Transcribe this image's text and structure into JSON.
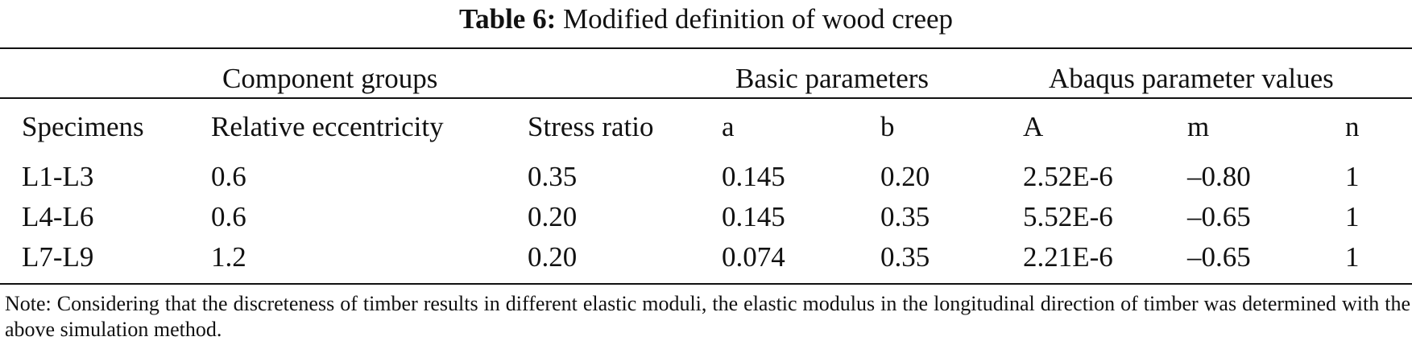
{
  "caption": {
    "label": "Table 6:",
    "title": "Modified definition of wood creep"
  },
  "group_headers": {
    "component_groups": "Component groups",
    "basic_parameters": "Basic parameters",
    "abaqus_parameter_values": "Abaqus parameter values"
  },
  "column_headers": {
    "specimens": "Specimens",
    "relative_eccentricity": "Relative eccentricity",
    "stress_ratio": "Stress ratio",
    "a": "a",
    "b": "b",
    "A": "A",
    "m": "m",
    "n": "n"
  },
  "rows": [
    {
      "specimens": "L1-L3",
      "relative_eccentricity": "0.6",
      "stress_ratio": "0.35",
      "a": "0.145",
      "b": "0.20",
      "A": "2.52E-6",
      "m": "–0.80",
      "n": "1"
    },
    {
      "specimens": "L4-L6",
      "relative_eccentricity": "0.6",
      "stress_ratio": "0.20",
      "a": "0.145",
      "b": "0.35",
      "A": "5.52E-6",
      "m": "–0.65",
      "n": "1"
    },
    {
      "specimens": "L7-L9",
      "relative_eccentricity": "1.2",
      "stress_ratio": "0.20",
      "a": "0.074",
      "b": "0.35",
      "A": "2.21E-6",
      "m": "–0.65",
      "n": "1"
    }
  ],
  "note": "Note: Considering that the discreteness of timber results in different elastic moduli, the elastic modulus in the longitudinal direction of timber was determined with the above simulation method."
}
